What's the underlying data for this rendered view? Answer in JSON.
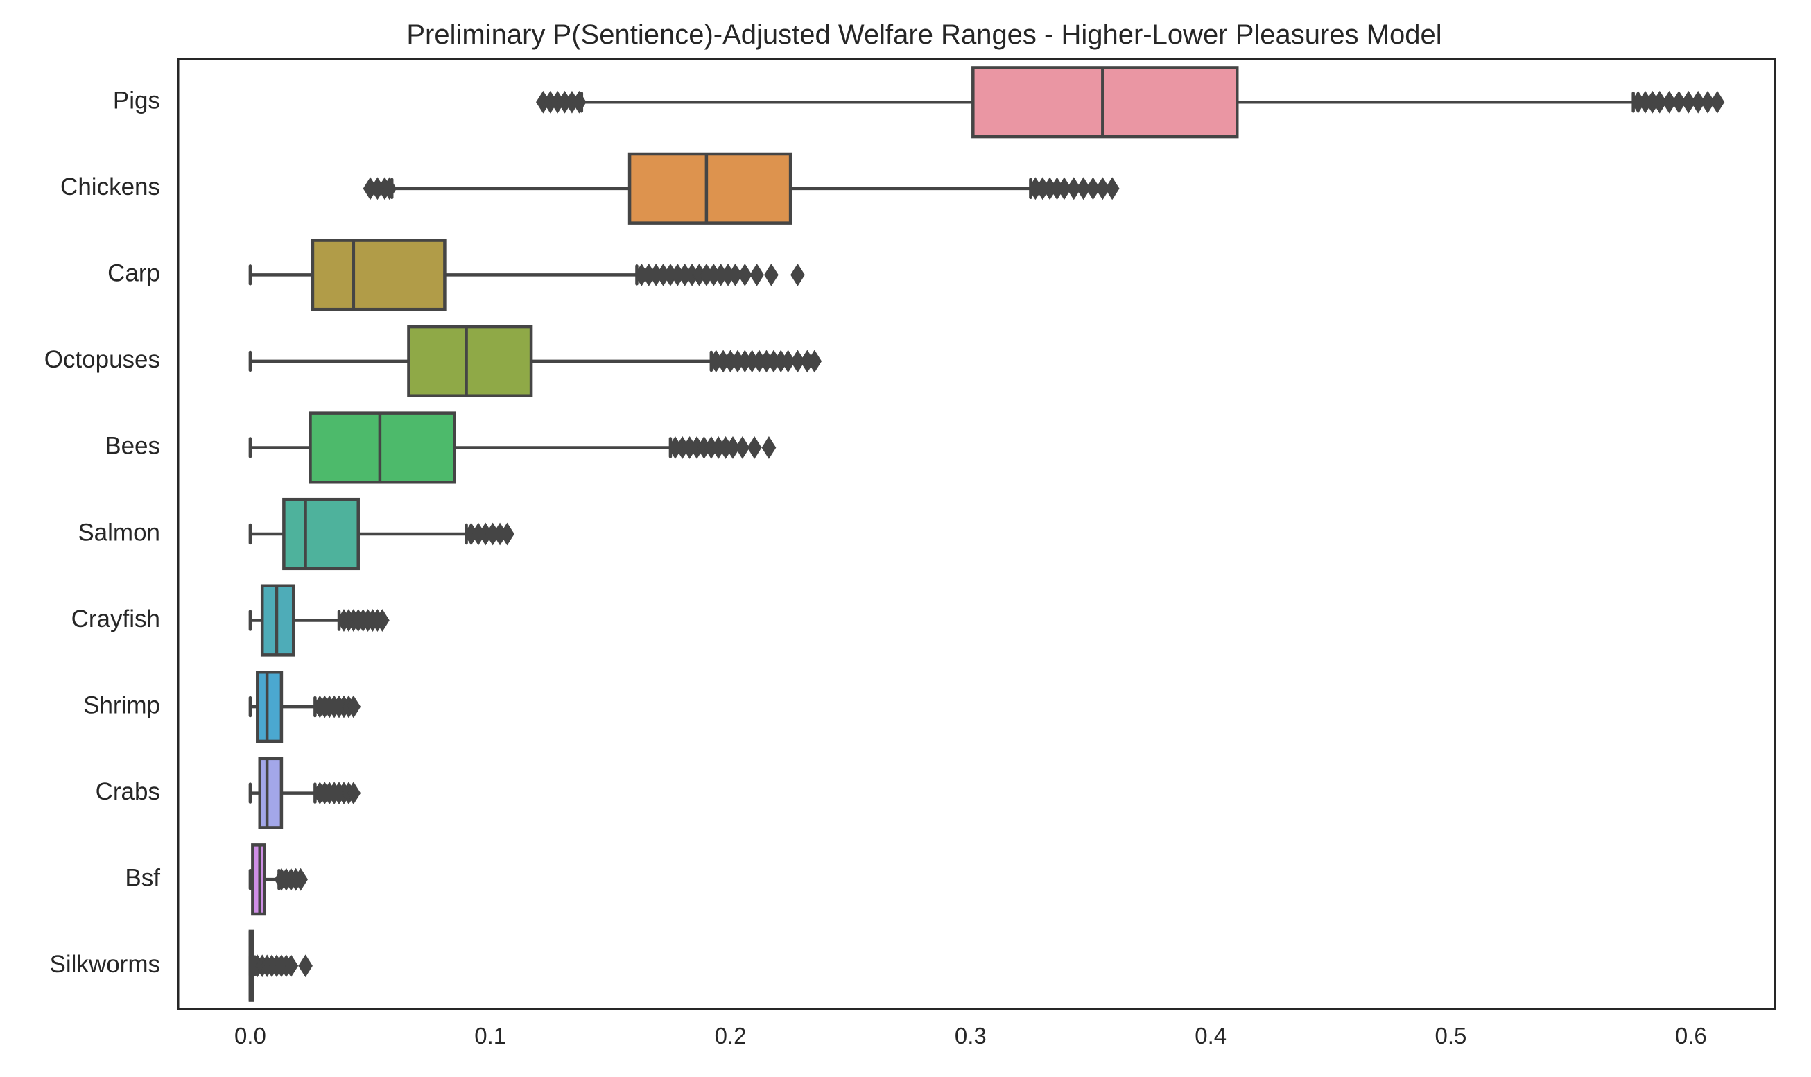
{
  "chart_data": {
    "type": "boxplot",
    "orientation": "horizontal",
    "title": "Preliminary P(Sentience)-Adjusted Welfare Ranges - Higher-Lower Pleasures Model",
    "xlabel": "",
    "ylabel": "",
    "xlim": [
      -0.03,
      0.635
    ],
    "xticks": [
      0.0,
      0.1,
      0.2,
      0.3,
      0.4,
      0.5,
      0.6
    ],
    "xtick_labels": [
      "0.0",
      "0.1",
      "0.2",
      "0.3",
      "0.4",
      "0.5",
      "0.6"
    ],
    "grid": false,
    "categories": [
      "Pigs",
      "Chickens",
      "Carp",
      "Octopuses",
      "Bees",
      "Salmon",
      "Crayfish",
      "Shrimp",
      "Crabs",
      "Bsf",
      "Silkworms"
    ],
    "boxes": [
      {
        "name": "Pigs",
        "color": "#ea96a3",
        "whisker_low": 0.138,
        "q1": 0.301,
        "median": 0.355,
        "q3": 0.411,
        "whisker_high": 0.576,
        "outliers": [
          0.122,
          0.125,
          0.128,
          0.131,
          0.134,
          0.137,
          0.578,
          0.581,
          0.584,
          0.587,
          0.591,
          0.595,
          0.599,
          0.603,
          0.607,
          0.611
        ]
      },
      {
        "name": "Chickens",
        "color": "#dd934e",
        "whisker_low": 0.059,
        "q1": 0.158,
        "median": 0.19,
        "q3": 0.225,
        "whisker_high": 0.325,
        "outliers": [
          0.05,
          0.053,
          0.056,
          0.058,
          0.327,
          0.33,
          0.333,
          0.336,
          0.339,
          0.343,
          0.347,
          0.351,
          0.355,
          0.359
        ]
      },
      {
        "name": "Carp",
        "color": "#b19c48",
        "whisker_low": 0.0,
        "q1": 0.026,
        "median": 0.043,
        "q3": 0.081,
        "whisker_high": 0.161,
        "outliers": [
          0.163,
          0.166,
          0.169,
          0.172,
          0.175,
          0.178,
          0.181,
          0.184,
          0.187,
          0.19,
          0.193,
          0.196,
          0.199,
          0.202,
          0.206,
          0.211,
          0.217,
          0.228
        ]
      },
      {
        "name": "Octopuses",
        "color": "#8fa947",
        "whisker_low": 0.0,
        "q1": 0.066,
        "median": 0.09,
        "q3": 0.117,
        "whisker_high": 0.192,
        "outliers": [
          0.194,
          0.197,
          0.2,
          0.203,
          0.206,
          0.209,
          0.212,
          0.215,
          0.218,
          0.221,
          0.224,
          0.228,
          0.232,
          0.235
        ]
      },
      {
        "name": "Bees",
        "color": "#4dba6b",
        "whisker_low": 0.0,
        "q1": 0.025,
        "median": 0.054,
        "q3": 0.085,
        "whisker_high": 0.175,
        "outliers": [
          0.177,
          0.18,
          0.183,
          0.186,
          0.189,
          0.192,
          0.195,
          0.198,
          0.201,
          0.205,
          0.21,
          0.216
        ]
      },
      {
        "name": "Salmon",
        "color": "#4eb29c",
        "whisker_low": 0.0,
        "q1": 0.014,
        "median": 0.023,
        "q3": 0.045,
        "whisker_high": 0.09,
        "outliers": [
          0.092,
          0.095,
          0.098,
          0.101,
          0.104,
          0.107
        ]
      },
      {
        "name": "Crayfish",
        "color": "#4eacb8",
        "whisker_low": 0.0,
        "q1": 0.005,
        "median": 0.011,
        "q3": 0.018,
        "whisker_high": 0.037,
        "outliers": [
          0.039,
          0.041,
          0.043,
          0.045,
          0.047,
          0.049,
          0.051,
          0.053,
          0.055
        ]
      },
      {
        "name": "Shrimp",
        "color": "#4ba8d0",
        "whisker_low": 0.0,
        "q1": 0.003,
        "median": 0.007,
        "q3": 0.013,
        "whisker_high": 0.027,
        "outliers": [
          0.029,
          0.031,
          0.033,
          0.035,
          0.037,
          0.039,
          0.041,
          0.043
        ]
      },
      {
        "name": "Crabs",
        "color": "#a3a7e9",
        "whisker_low": 0.0,
        "q1": 0.004,
        "median": 0.007,
        "q3": 0.013,
        "whisker_high": 0.027,
        "outliers": [
          0.029,
          0.031,
          0.033,
          0.035,
          0.037,
          0.039,
          0.041,
          0.043
        ]
      },
      {
        "name": "Bsf",
        "color": "#cf8fe6",
        "whisker_low": 0.0,
        "q1": 0.001,
        "median": 0.004,
        "q3": 0.006,
        "whisker_high": 0.012,
        "outliers": [
          0.013,
          0.015,
          0.017,
          0.019,
          0.021
        ]
      },
      {
        "name": "Silkworms",
        "color": "#e998c5",
        "whisker_low": 0.0,
        "q1": 0.0,
        "median": 0.0,
        "q3": 0.001,
        "whisker_high": 0.002,
        "outliers": [
          0.003,
          0.005,
          0.007,
          0.009,
          0.011,
          0.013,
          0.015,
          0.017,
          0.023
        ]
      }
    ]
  },
  "style": {
    "line_color": "#454545",
    "frame_color": "#262626",
    "background": "#ffffff"
  }
}
